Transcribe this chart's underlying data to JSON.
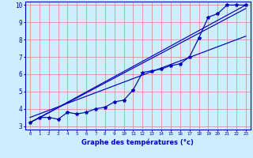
{
  "xlabel": "Graphe des températures (°c)",
  "bg_color": "#cceeff",
  "grid_color": "#e08080",
  "line_color": "#0000bb",
  "xlim": [
    -0.5,
    23.5
  ],
  "ylim": [
    2.8,
    10.2
  ],
  "x_ticks": [
    0,
    1,
    2,
    3,
    4,
    5,
    6,
    7,
    8,
    9,
    10,
    11,
    12,
    13,
    14,
    15,
    16,
    17,
    18,
    19,
    20,
    21,
    22,
    23
  ],
  "y_ticks": [
    3,
    4,
    5,
    6,
    7,
    8,
    9,
    10
  ],
  "hours": [
    0,
    1,
    2,
    3,
    4,
    5,
    6,
    7,
    8,
    9,
    10,
    11,
    12,
    13,
    14,
    15,
    16,
    17,
    18,
    19,
    20,
    21,
    22,
    23
  ],
  "temps": [
    3.2,
    3.5,
    3.5,
    3.4,
    3.8,
    3.7,
    3.8,
    4.0,
    4.1,
    4.4,
    4.5,
    5.1,
    6.1,
    6.2,
    6.3,
    6.5,
    6.6,
    7.0,
    8.1,
    9.3,
    9.5,
    10.0,
    10.0,
    10.0
  ],
  "reg_lines": [
    {
      "x": [
        0,
        23
      ],
      "y": [
        3.2,
        10.0
      ]
    },
    {
      "x": [
        0,
        23
      ],
      "y": [
        3.2,
        9.8
      ]
    },
    {
      "x": [
        0,
        23
      ],
      "y": [
        3.5,
        8.2
      ]
    }
  ]
}
